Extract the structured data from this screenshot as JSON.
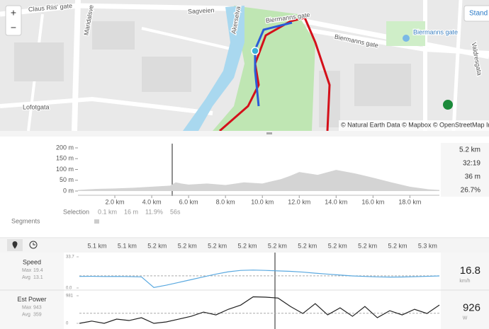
{
  "map": {
    "zoom_in": "+",
    "zoom_out": "−",
    "style_button": "Stand",
    "attribution": "© Natural Earth Data © Mapbox © OpenStreetMap Im",
    "labels": [
      "Claus Riis' gate",
      "Maridalsve",
      "Sagveien",
      "Biermanns gate",
      "Akerselva",
      "Biermanns gate",
      "Biermanns gate",
      "Lofotgata",
      "Valdresgata"
    ]
  },
  "elevation": {
    "xlim": [
      0,
      19.6
    ],
    "ylim": [
      0,
      200
    ],
    "xticks": [
      {
        "value": 2,
        "label": "2.0 km"
      },
      {
        "value": 4,
        "label": "4.0 km"
      },
      {
        "value": 6,
        "label": "6.0 km"
      },
      {
        "value": 8,
        "label": "8.0 km"
      },
      {
        "value": 10,
        "label": "10.0 km"
      },
      {
        "value": 12,
        "label": "12.0 km"
      },
      {
        "value": 14,
        "label": "14.0 km"
      },
      {
        "value": 16,
        "label": "16.0 km"
      },
      {
        "value": 18,
        "label": "18.0 km"
      }
    ],
    "yticks": [
      {
        "value": 0,
        "label": "0 m"
      },
      {
        "value": 50,
        "label": "50 m"
      },
      {
        "value": 100,
        "label": "100 m"
      },
      {
        "value": 150,
        "label": "150 m"
      },
      {
        "value": 200,
        "label": "200 m"
      }
    ],
    "x": [
      0,
      1,
      2,
      3,
      4,
      5,
      5.3,
      5.6,
      6,
      7,
      8,
      9,
      10,
      11,
      11.5,
      12,
      13,
      14,
      15,
      16,
      17,
      18,
      19,
      19.6
    ],
    "values": [
      5,
      10,
      12,
      15,
      20,
      25,
      40,
      35,
      30,
      35,
      28,
      40,
      35,
      55,
      70,
      88,
      75,
      98,
      82,
      62,
      40,
      20,
      8,
      5
    ]
  },
  "stats": [
    "5.2 km",
    "32:19",
    "36 m",
    "26.7%"
  ],
  "selection": {
    "label": "Selection",
    "values": [
      "0.1 km",
      "16 m",
      "11.9%",
      "56s"
    ]
  },
  "segments": "Segments",
  "detail": {
    "xlabels": [
      "5.1 km",
      "5.1 km",
      "5.2 km",
      "5.2 km",
      "5.2 km",
      "5.2 km",
      "5.2 km",
      "5.2 km",
      "5.2 km",
      "5.2 km",
      "5.2 km",
      "5.3 km"
    ],
    "panels": [
      {
        "name": "Speed",
        "max_label": "Max",
        "max": 19.4,
        "avg_label": "Avg",
        "avg": 13.1,
        "ylim": [
          0,
          33.7
        ],
        "yticks": [
          {
            "value": 33.7,
            "label": "33.7"
          },
          {
            "value": 0,
            "label": "0.0"
          }
        ],
        "color": "#5aa9e0",
        "values": [
          12.5,
          12.6,
          12.4,
          12.5,
          12.3,
          12.0,
          0.5,
          3,
          6,
          9,
          12,
          15,
          17.5,
          19,
          19.4,
          19,
          18.5,
          18,
          17.2,
          16,
          15,
          14,
          13,
          12.5,
          12,
          11.8,
          11.9,
          12.2,
          12.6,
          13
        ],
        "current": "16.8",
        "unit": "km/h"
      },
      {
        "name": "Est Power",
        "max_label": "Max",
        "max": 943,
        "avg_label": "Avg",
        "avg": 359,
        "ylim": [
          0,
          981
        ],
        "yticks": [
          {
            "value": 981,
            "label": "981"
          },
          {
            "value": 0,
            "label": "0"
          }
        ],
        "color": "#222222",
        "values": [
          0,
          80,
          0,
          150,
          100,
          200,
          0,
          50,
          150,
          250,
          400,
          300,
          500,
          650,
          943,
          930,
          900,
          600,
          350,
          700,
          300,
          550,
          250,
          600,
          200,
          450,
          300,
          500,
          350,
          650
        ],
        "current": "926",
        "unit": "W"
      }
    ]
  }
}
